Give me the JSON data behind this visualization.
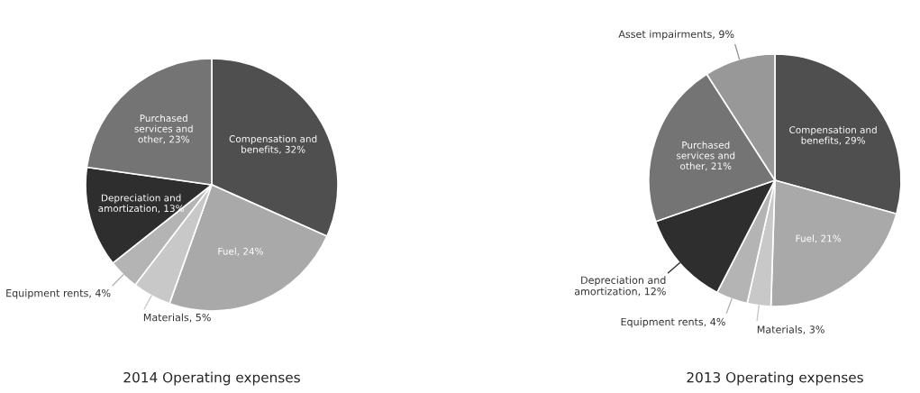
{
  "chart_data": [
    {
      "type": "pie",
      "title": "2014 Operating expenses",
      "categories": [
        "Compensation and benefits",
        "Fuel",
        "Materials",
        "Equipment rents",
        "Depreciation and amortization",
        "Purchased services and other"
      ],
      "values": [
        32,
        24,
        5,
        4,
        13,
        23
      ],
      "value_labels": [
        "32%",
        "24%",
        "5%",
        "4%",
        "13%",
        "23%"
      ],
      "colors": [
        "#4f4f4f",
        "#a9a9a9",
        "#c8c8c8",
        "#b4b4b4",
        "#2e2e2e",
        "#747474"
      ]
    },
    {
      "type": "pie",
      "title": "2013 Operating expenses",
      "categories": [
        "Compensation and benefits",
        "Fuel",
        "Materials",
        "Equipment rents",
        "Depreciation and amortization",
        "Purchased services and other",
        "Asset impairments"
      ],
      "values": [
        29,
        21,
        3,
        4,
        12,
        21,
        9
      ],
      "value_labels": [
        "29%",
        "21%",
        "3%",
        "4%",
        "12%",
        "21%",
        "9%"
      ],
      "colors": [
        "#4f4f4f",
        "#a9a9a9",
        "#c8c8c8",
        "#b4b4b4",
        "#2e2e2e",
        "#747474",
        "#989898"
      ]
    }
  ]
}
